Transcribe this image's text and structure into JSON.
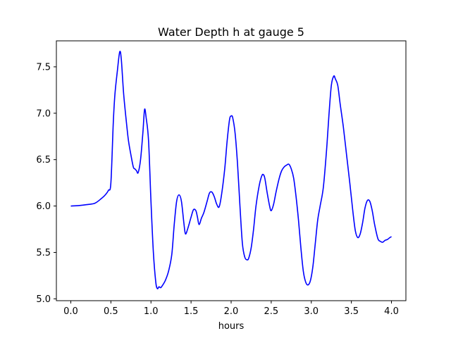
{
  "chart_data": {
    "type": "line",
    "title": "Water Depth h at gauge 5",
    "xlabel": "hours",
    "ylabel": "",
    "xlim": [
      -0.18,
      4.18
    ],
    "ylim": [
      4.98,
      7.78
    ],
    "grid": false,
    "x_ticks": [
      {
        "value": 0.0,
        "label": "0.0"
      },
      {
        "value": 0.5,
        "label": "0.5"
      },
      {
        "value": 1.0,
        "label": "1.0"
      },
      {
        "value": 1.5,
        "label": "1.5"
      },
      {
        "value": 2.0,
        "label": "2.0"
      },
      {
        "value": 2.5,
        "label": "2.5"
      },
      {
        "value": 3.0,
        "label": "3.0"
      },
      {
        "value": 3.5,
        "label": "3.5"
      },
      {
        "value": 4.0,
        "label": "4.0"
      }
    ],
    "y_ticks": [
      {
        "value": 5.0,
        "label": "5.0"
      },
      {
        "value": 5.5,
        "label": "5.5"
      },
      {
        "value": 6.0,
        "label": "6.0"
      },
      {
        "value": 6.5,
        "label": "6.5"
      },
      {
        "value": 7.0,
        "label": "7.0"
      },
      {
        "value": 7.5,
        "label": "7.5"
      }
    ],
    "series": [
      {
        "color": "#0000ff",
        "x": [
          0.0,
          0.1,
          0.2,
          0.3,
          0.38,
          0.43,
          0.47,
          0.5,
          0.53,
          0.55,
          0.58,
          0.61,
          0.63,
          0.66,
          0.7,
          0.72,
          0.75,
          0.78,
          0.8,
          0.82,
          0.84,
          0.87,
          0.9,
          0.92,
          0.94,
          0.97,
          1.0,
          1.03,
          1.06,
          1.08,
          1.1,
          1.12,
          1.14,
          1.18,
          1.22,
          1.26,
          1.29,
          1.32,
          1.35,
          1.38,
          1.41,
          1.43,
          1.46,
          1.5,
          1.53,
          1.56,
          1.58,
          1.6,
          1.63,
          1.66,
          1.7,
          1.73,
          1.76,
          1.79,
          1.82,
          1.85,
          1.88,
          1.92,
          1.95,
          1.98,
          2.0,
          2.02,
          2.05,
          2.08,
          2.11,
          2.14,
          2.17,
          2.2,
          2.22,
          2.25,
          2.28,
          2.31,
          2.35,
          2.38,
          2.4,
          2.42,
          2.45,
          2.48,
          2.5,
          2.53,
          2.56,
          2.6,
          2.63,
          2.66,
          2.69,
          2.72,
          2.75,
          2.78,
          2.81,
          2.84,
          2.87,
          2.9,
          2.93,
          2.96,
          2.99,
          3.02,
          3.05,
          3.08,
          3.11,
          3.15,
          3.19,
          3.22,
          3.25,
          3.28,
          3.3,
          3.33,
          3.36,
          3.4,
          3.44,
          3.48,
          3.52,
          3.55,
          3.58,
          3.61,
          3.64,
          3.67,
          3.7,
          3.73,
          3.76,
          3.79,
          3.83,
          3.86,
          3.89,
          3.92,
          3.95,
          3.98,
          4.0
        ],
        "y": [
          6.0,
          6.005,
          6.015,
          6.03,
          6.08,
          6.12,
          6.17,
          6.25,
          6.9,
          7.2,
          7.45,
          7.66,
          7.58,
          7.2,
          6.85,
          6.7,
          6.55,
          6.42,
          6.4,
          6.38,
          6.36,
          6.5,
          6.8,
          7.04,
          6.95,
          6.7,
          6.05,
          5.5,
          5.18,
          5.11,
          5.13,
          5.12,
          5.14,
          5.2,
          5.3,
          5.48,
          5.8,
          6.05,
          6.12,
          6.05,
          5.82,
          5.7,
          5.76,
          5.88,
          5.96,
          5.95,
          5.88,
          5.8,
          5.87,
          5.93,
          6.05,
          6.14,
          6.15,
          6.1,
          6.02,
          5.99,
          6.12,
          6.4,
          6.7,
          6.93,
          6.97,
          6.95,
          6.78,
          6.45,
          6.0,
          5.6,
          5.45,
          5.42,
          5.44,
          5.55,
          5.75,
          6.0,
          6.22,
          6.32,
          6.34,
          6.3,
          6.14,
          6.0,
          5.95,
          6.02,
          6.15,
          6.3,
          6.38,
          6.42,
          6.44,
          6.45,
          6.4,
          6.3,
          6.1,
          5.85,
          5.55,
          5.3,
          5.18,
          5.15,
          5.2,
          5.35,
          5.6,
          5.85,
          6.0,
          6.2,
          6.6,
          6.98,
          7.3,
          7.4,
          7.37,
          7.3,
          7.1,
          6.85,
          6.55,
          6.25,
          5.93,
          5.73,
          5.66,
          5.7,
          5.82,
          5.98,
          6.06,
          6.05,
          5.95,
          5.8,
          5.65,
          5.62,
          5.61,
          5.63,
          5.64,
          5.66,
          5.67
        ]
      }
    ]
  }
}
